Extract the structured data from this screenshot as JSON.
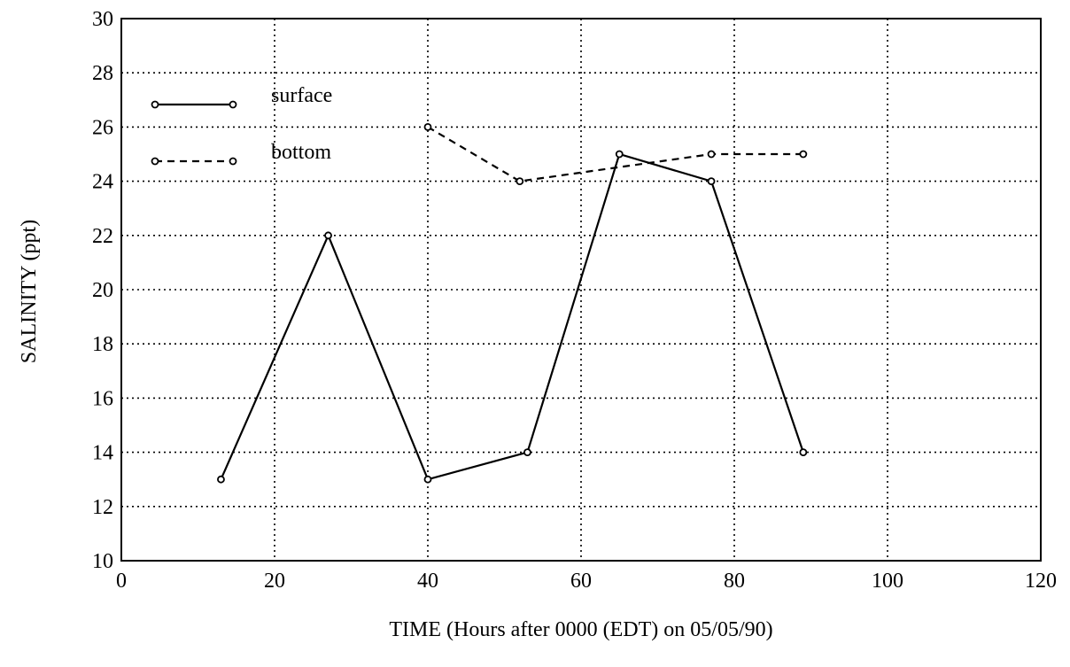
{
  "chart_data": {
    "type": "line",
    "xlabel": "TIME (Hours after 0000 (EDT) on 05/05/90)",
    "ylabel": "SALINITY (ppt)",
    "xlim": [
      0,
      120
    ],
    "ylim": [
      10,
      30
    ],
    "xticks": [
      0,
      20,
      40,
      60,
      80,
      100,
      120
    ],
    "yticks": [
      10,
      12,
      14,
      16,
      18,
      20,
      22,
      24,
      26,
      28,
      30
    ],
    "grid": true,
    "legend_position": "top-left",
    "series": [
      {
        "name": "surface",
        "line_style": "solid",
        "marker": "circle",
        "color": "#000000",
        "x": [
          13,
          27,
          40,
          53,
          65,
          77,
          89
        ],
        "y": [
          13,
          22,
          13,
          14,
          25,
          24,
          14
        ]
      },
      {
        "name": "bottom",
        "line_style": "dashed",
        "marker": "circle",
        "color": "#000000",
        "x": [
          40,
          52,
          77,
          89
        ],
        "y": [
          26,
          24,
          25,
          25
        ]
      }
    ]
  }
}
